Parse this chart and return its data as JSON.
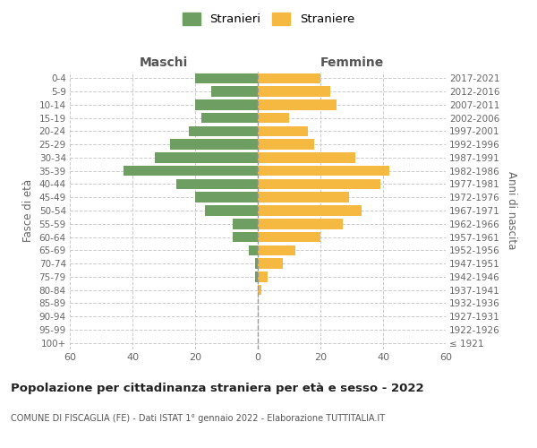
{
  "age_groups": [
    "100+",
    "95-99",
    "90-94",
    "85-89",
    "80-84",
    "75-79",
    "70-74",
    "65-69",
    "60-64",
    "55-59",
    "50-54",
    "45-49",
    "40-44",
    "35-39",
    "30-34",
    "25-29",
    "20-24",
    "15-19",
    "10-14",
    "5-9",
    "0-4"
  ],
  "birth_years": [
    "≤ 1921",
    "1922-1926",
    "1927-1931",
    "1932-1936",
    "1937-1941",
    "1942-1946",
    "1947-1951",
    "1952-1956",
    "1957-1961",
    "1962-1966",
    "1967-1971",
    "1972-1976",
    "1977-1981",
    "1982-1986",
    "1987-1991",
    "1992-1996",
    "1997-2001",
    "2002-2006",
    "2007-2011",
    "2012-2016",
    "2017-2021"
  ],
  "maschi": [
    0,
    0,
    0,
    0,
    0,
    1,
    1,
    3,
    8,
    8,
    17,
    20,
    26,
    43,
    33,
    28,
    22,
    18,
    20,
    15,
    20
  ],
  "femmine": [
    0,
    0,
    0,
    0,
    1,
    3,
    8,
    12,
    20,
    27,
    33,
    29,
    39,
    42,
    31,
    18,
    16,
    10,
    25,
    23,
    20
  ],
  "maschi_color": "#6e9e62",
  "femmine_color": "#f5b942",
  "background_color": "#ffffff",
  "grid_color": "#cccccc",
  "title": "Popolazione per cittadinanza straniera per età e sesso - 2022",
  "subtitle": "COMUNE DI FISCAGLIA (FE) - Dati ISTAT 1° gennaio 2022 - Elaborazione TUTTITALIA.IT",
  "xlabel_left": "Maschi",
  "xlabel_right": "Femmine",
  "ylabel_left": "Fasce di età",
  "ylabel_right": "Anni di nascita",
  "legend_stranieri": "Stranieri",
  "legend_straniere": "Straniere",
  "xlim": 60
}
